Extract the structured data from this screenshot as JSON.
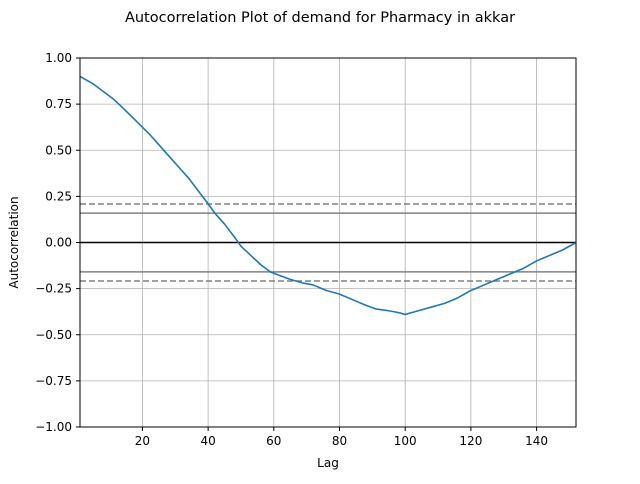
{
  "chart_data": {
    "type": "line",
    "title": "Autocorrelation Plot of demand for Pharmacy in akkar",
    "xlabel": "Lag",
    "ylabel": "Autocorrelation",
    "xlim": [
      1,
      152
    ],
    "ylim": [
      -1.0,
      1.0
    ],
    "grid": true,
    "x_ticks": [
      20,
      40,
      60,
      80,
      100,
      120,
      140
    ],
    "x_tick_labels": [
      "20",
      "40",
      "60",
      "80",
      "100",
      "120",
      "140"
    ],
    "y_ticks": [
      -1.0,
      -0.75,
      -0.5,
      -0.25,
      0.0,
      0.25,
      0.5,
      0.75,
      1.0
    ],
    "y_tick_labels": [
      "−1.00",
      "−0.75",
      "−0.50",
      "−0.25",
      "0.00",
      "0.25",
      "0.50",
      "0.75",
      "1.00"
    ],
    "reference_lines": [
      {
        "y": 0.0,
        "style": "solid",
        "color": "#000000"
      },
      {
        "y": 0.159,
        "style": "solid",
        "color": "#808080"
      },
      {
        "y": -0.159,
        "style": "solid",
        "color": "#808080"
      },
      {
        "y": 0.209,
        "style": "dashed",
        "color": "#808080"
      },
      {
        "y": -0.209,
        "style": "dashed",
        "color": "#808080"
      }
    ],
    "series": [
      {
        "color": "#1f77b4",
        "points": [
          [
            1,
            0.9
          ],
          [
            5,
            0.86
          ],
          [
            8,
            0.82
          ],
          [
            11,
            0.78
          ],
          [
            14,
            0.73
          ],
          [
            18,
            0.66
          ],
          [
            22,
            0.59
          ],
          [
            25,
            0.53
          ],
          [
            28,
            0.47
          ],
          [
            31,
            0.41
          ],
          [
            34,
            0.35
          ],
          [
            37,
            0.28
          ],
          [
            40,
            0.21
          ],
          [
            42,
            0.16
          ],
          [
            45,
            0.1
          ],
          [
            48,
            0.03
          ],
          [
            50,
            -0.02
          ],
          [
            53,
            -0.07
          ],
          [
            56,
            -0.12
          ],
          [
            59,
            -0.16
          ],
          [
            62,
            -0.18
          ],
          [
            65,
            -0.2
          ],
          [
            69,
            -0.22
          ],
          [
            72,
            -0.23
          ],
          [
            76,
            -0.26
          ],
          [
            80,
            -0.28
          ],
          [
            84,
            -0.31
          ],
          [
            88,
            -0.34
          ],
          [
            91,
            -0.36
          ],
          [
            95,
            -0.37
          ],
          [
            98,
            -0.38
          ],
          [
            100,
            -0.39
          ],
          [
            104,
            -0.37
          ],
          [
            108,
            -0.35
          ],
          [
            112,
            -0.33
          ],
          [
            116,
            -0.3
          ],
          [
            120,
            -0.26
          ],
          [
            124,
            -0.23
          ],
          [
            128,
            -0.2
          ],
          [
            132,
            -0.17
          ],
          [
            136,
            -0.14
          ],
          [
            140,
            -0.1
          ],
          [
            144,
            -0.07
          ],
          [
            148,
            -0.04
          ],
          [
            152,
            0.0
          ]
        ]
      }
    ]
  }
}
